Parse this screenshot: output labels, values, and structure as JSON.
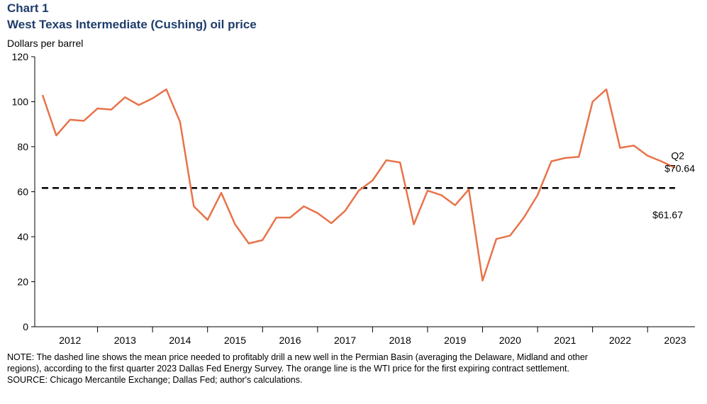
{
  "chart_data": {
    "type": "line",
    "title": "Chart 1",
    "subtitle": "West Texas Intermediate (Cushing) oil price",
    "y_label": "Dollars per barrel",
    "categories": [
      null,
      null,
      "2012",
      null,
      null,
      null,
      "2013",
      null,
      null,
      null,
      "2014",
      null,
      null,
      null,
      "2015",
      null,
      null,
      null,
      "2016",
      null,
      null,
      null,
      "2017",
      null,
      null,
      null,
      "2018",
      null,
      null,
      null,
      "2019",
      null,
      null,
      null,
      "2020",
      null,
      null,
      null,
      "2021",
      null,
      null,
      null,
      "2022",
      null,
      null,
      null,
      "2023"
    ],
    "series": [
      {
        "name": "WTI",
        "color": "#e8734a",
        "values": [
          103,
          85,
          92,
          91.5,
          97,
          96.5,
          102,
          98.5,
          101.5,
          105.5,
          91,
          53.5,
          47.5,
          59.5,
          45.5,
          37,
          38.5,
          48.5,
          48.5,
          53.5,
          50.5,
          46,
          51.5,
          60.5,
          65,
          74,
          73,
          45.5,
          60.5,
          58.5,
          54,
          61,
          20.5,
          39,
          40.5,
          48.5,
          58.5,
          73.5,
          75,
          75.5,
          100,
          105.5,
          79.5,
          80.5,
          76,
          73.5,
          70.64
        ],
        "value_labels": [
          null,
          null,
          null,
          null,
          null,
          null,
          null,
          null,
          null,
          null,
          null,
          null,
          null,
          null,
          null,
          null,
          null,
          null,
          null,
          null,
          null,
          null,
          null,
          null,
          null,
          null,
          null,
          null,
          null,
          null,
          null,
          null,
          null,
          null,
          null,
          null,
          null,
          null,
          null,
          null,
          null,
          null,
          null,
          null,
          null,
          null,
          "$70.64"
        ]
      }
    ],
    "end_annotation": "Q2",
    "reference_line": {
      "value": 61.67,
      "label": "$61.67",
      "color": "#000000"
    },
    "ylim": [
      0,
      120
    ],
    "yticks": [
      0,
      20,
      40,
      60,
      80,
      100,
      120
    ],
    "grid": false,
    "notes": [
      "NOTE: The dashed line shows the mean price needed to profitably drill a new well in the Permian Basin (averaging the Delaware, Midland and other",
      "regions), according to the first quarter 2023 Dallas Fed Energy Survey. The orange line is the WTI price for the first expiring contract settlement.",
      "SOURCE: Chicago Mercantile Exchange; Dallas Fed; author's calculations."
    ]
  }
}
